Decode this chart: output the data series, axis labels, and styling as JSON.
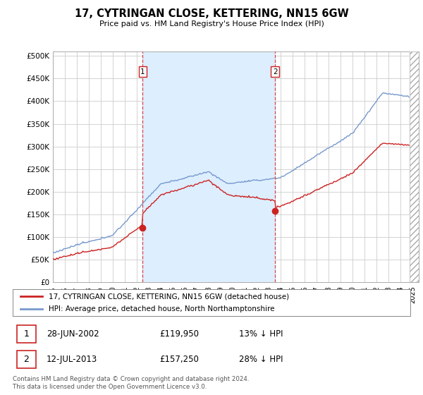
{
  "title": "17, CYTRINGAN CLOSE, KETTERING, NN15 6GW",
  "subtitle": "Price paid vs. HM Land Registry's House Price Index (HPI)",
  "xlim_start": 1995.0,
  "xlim_end": 2025.5,
  "ylim_min": 0,
  "ylim_max": 510000,
  "yticks": [
    0,
    50000,
    100000,
    150000,
    200000,
    250000,
    300000,
    350000,
    400000,
    450000,
    500000
  ],
  "ytick_labels": [
    "£0",
    "£50K",
    "£100K",
    "£150K",
    "£200K",
    "£250K",
    "£300K",
    "£350K",
    "£400K",
    "£450K",
    "£500K"
  ],
  "red_line_color": "#cc2222",
  "blue_line_color": "#7799cc",
  "shade_color": "#ddeeff",
  "grid_color": "#cccccc",
  "bg_color": "#ffffff",
  "marker1_x": 2002.49,
  "marker1_y": 119950,
  "marker2_x": 2013.53,
  "marker2_y": 157250,
  "dashed_line_color": "#dd4444",
  "legend_entries": [
    "17, CYTRINGAN CLOSE, KETTERING, NN15 6GW (detached house)",
    "HPI: Average price, detached house, North Northamptonshire"
  ],
  "footnote": "Contains HM Land Registry data © Crown copyright and database right 2024.\nThis data is licensed under the Open Government Licence v3.0."
}
